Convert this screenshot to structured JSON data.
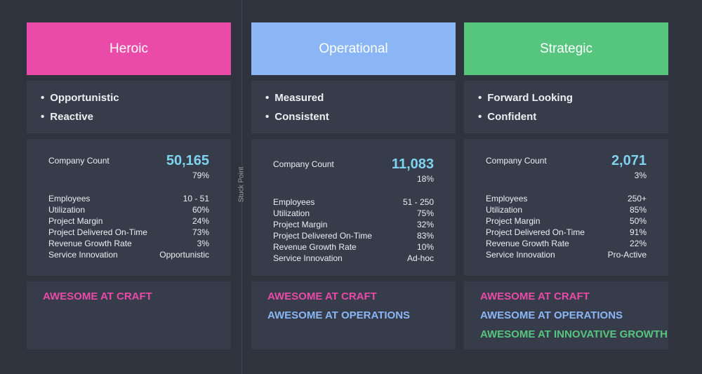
{
  "divider_label": "Stuck Point",
  "columns": [
    {
      "title": "Heroic",
      "color": "#ea4aa8",
      "traits": [
        "Opportunistic",
        "Reactive"
      ],
      "company_count_label": "Company Count",
      "company_count": "50,165",
      "share": "79%",
      "stats": [
        [
          "Employees",
          "10 - 51"
        ],
        [
          "Utilization",
          "60%"
        ],
        [
          "Project Margin",
          "24%"
        ],
        [
          "Project Delivered On-Time",
          "73%"
        ],
        [
          "Revenue Growth Rate",
          "3%"
        ],
        [
          "Service Innovation",
          "Opportunistic"
        ]
      ],
      "taglines": [
        "AWESOME AT CRAFT"
      ]
    },
    {
      "title": "Operational",
      "color": "#8ab6f5",
      "traits": [
        "Measured",
        "Consistent"
      ],
      "company_count_label": "Company Count",
      "company_count": "11,083",
      "share": "18%",
      "stats": [
        [
          "Employees",
          "51 - 250"
        ],
        [
          "Utilization",
          "75%"
        ],
        [
          "Project Margin",
          "32%"
        ],
        [
          "Project Delivered On-Time",
          "83%"
        ],
        [
          "Revenue Growth Rate",
          "10%"
        ],
        [
          "Service Innovation",
          "Ad-hoc"
        ]
      ],
      "taglines": [
        "AWESOME AT CRAFT",
        "AWESOME AT OPERATIONS"
      ]
    },
    {
      "title": "Strategic",
      "color": "#56c57e",
      "traits": [
        "Forward Looking",
        "Confident"
      ],
      "company_count_label": "Company Count",
      "company_count": "2,071",
      "share": "3%",
      "stats": [
        [
          "Employees",
          "250+"
        ],
        [
          "Utilization",
          "85%"
        ],
        [
          "Project Margin",
          "50%"
        ],
        [
          "Project Delivered On-Time",
          "91%"
        ],
        [
          "Revenue Growth Rate",
          "22%"
        ],
        [
          "Service Innovation",
          "Pro-Active"
        ]
      ],
      "taglines": [
        "AWESOME AT CRAFT",
        "AWESOME AT OPERATIONS",
        "AWESOME AT INNOVATIVE GROWTH"
      ]
    }
  ],
  "tagline_colors": {
    "AWESOME AT CRAFT": "#ea4aa8",
    "AWESOME AT OPERATIONS": "#8ab6f5",
    "AWESOME AT INNOVATIVE GROWTH": "#56c57e"
  }
}
